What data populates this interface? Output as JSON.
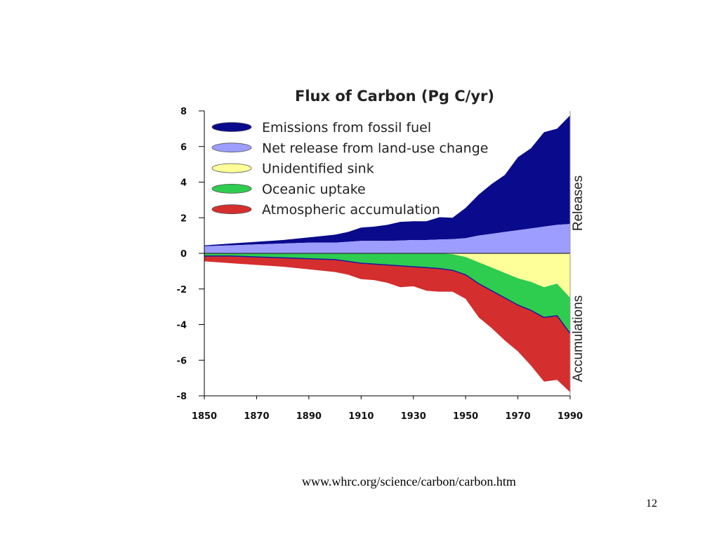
{
  "chart_data": {
    "type": "area",
    "title": "Flux of Carbon (Pg C/yr)",
    "xlim": [
      1850,
      1990
    ],
    "ylim": [
      -8,
      8
    ],
    "x_ticks": [
      1850,
      1870,
      1890,
      1910,
      1930,
      1950,
      1970,
      1990
    ],
    "y_ticks": [
      8,
      6,
      4,
      2,
      0,
      -2,
      -4,
      -6,
      -8
    ],
    "grid": false,
    "legend_position": "top-left",
    "side_labels": {
      "top": "Releases",
      "bottom": "Accumulations"
    },
    "x": [
      1850,
      1860,
      1870,
      1880,
      1890,
      1900,
      1905,
      1910,
      1915,
      1920,
      1925,
      1930,
      1935,
      1940,
      1945,
      1950,
      1955,
      1960,
      1965,
      1970,
      1975,
      1980,
      1985,
      1990
    ],
    "series": [
      {
        "name": "Emissions from fossil fuel",
        "color": "#0a0a8c",
        "values": [
          0.05,
          0.1,
          0.15,
          0.2,
          0.3,
          0.45,
          0.55,
          0.75,
          0.8,
          0.9,
          1.05,
          1.05,
          1.05,
          1.25,
          1.2,
          1.7,
          2.3,
          2.8,
          3.2,
          4.1,
          4.5,
          5.3,
          5.4,
          6.1
        ]
      },
      {
        "name": "Net release from land-use change",
        "color": "#9d9dff",
        "values": [
          0.4,
          0.45,
          0.5,
          0.55,
          0.6,
          0.6,
          0.65,
          0.7,
          0.7,
          0.7,
          0.72,
          0.75,
          0.75,
          0.78,
          0.8,
          0.85,
          1.0,
          1.1,
          1.2,
          1.3,
          1.4,
          1.5,
          1.6,
          1.65
        ]
      },
      {
        "name": "Unidentified sink",
        "color": "#ffff99",
        "values": [
          0.0,
          0.0,
          0.0,
          0.0,
          0.0,
          0.0,
          0.0,
          0.0,
          0.0,
          0.0,
          0.0,
          0.0,
          0.0,
          0.0,
          0.05,
          0.2,
          0.5,
          0.8,
          1.1,
          1.4,
          1.6,
          1.9,
          1.7,
          2.5
        ]
      },
      {
        "name": "Oceanic uptake",
        "color": "#2ecc4f",
        "values": [
          0.15,
          0.15,
          0.2,
          0.25,
          0.3,
          0.35,
          0.45,
          0.55,
          0.6,
          0.65,
          0.7,
          0.75,
          0.8,
          0.85,
          0.9,
          1.0,
          1.2,
          1.3,
          1.4,
          1.5,
          1.6,
          1.7,
          1.8,
          2.0
        ]
      },
      {
        "name": "Atmospheric accumulation",
        "color": "#d42e2e",
        "values": [
          0.3,
          0.4,
          0.45,
          0.5,
          0.6,
          0.7,
          0.75,
          0.9,
          0.9,
          1.0,
          1.2,
          1.1,
          1.3,
          1.3,
          1.2,
          1.35,
          1.9,
          2.1,
          2.4,
          2.6,
          3.1,
          3.6,
          3.6,
          3.3
        ]
      }
    ]
  },
  "source_url": "www.whrc.org/science/carbon/carbon.htm",
  "slide_number": "12"
}
